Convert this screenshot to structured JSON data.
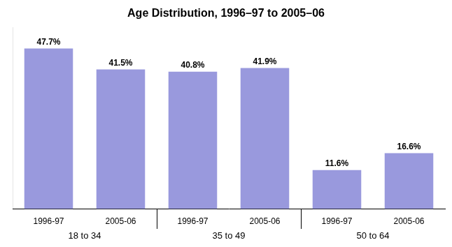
{
  "chart_data": {
    "type": "bar",
    "title": "Age Distribution, 1996–97 to 2005–06",
    "categories": [
      "1996-97",
      "2005-06",
      "1996-97",
      "2005-06",
      "1996-97",
      "2005-06"
    ],
    "groups": [
      "18 to 34",
      "18 to 34",
      "35 to 49",
      "35 to 49",
      "50 to 64",
      "50 to 64"
    ],
    "values": [
      47.7,
      41.5,
      40.8,
      41.9,
      11.6,
      16.6
    ],
    "value_labels": [
      "47.7%",
      "41.5%",
      "40.8%",
      "41.9%",
      "11.6%",
      "16.6%"
    ],
    "data_labels": true,
    "color": "#9999dd",
    "ylim": [
      0,
      54
    ],
    "grid": false,
    "tick_labels": "x"
  }
}
